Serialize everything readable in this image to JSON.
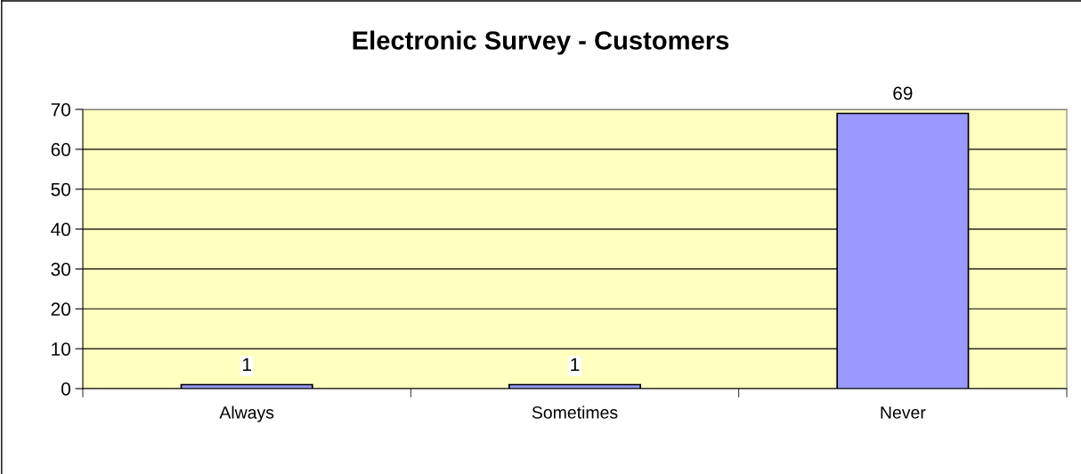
{
  "chart_data": {
    "type": "bar",
    "title": "Electronic Survey - Customers",
    "categories": [
      "Always",
      "Sometimes",
      "Never"
    ],
    "values": [
      1,
      1,
      69
    ],
    "color": "#9999ff",
    "ylim": [
      0,
      70
    ],
    "yticks": [
      0,
      10,
      20,
      30,
      40,
      50,
      60,
      70
    ],
    "grid": "y",
    "data_labels": true
  }
}
